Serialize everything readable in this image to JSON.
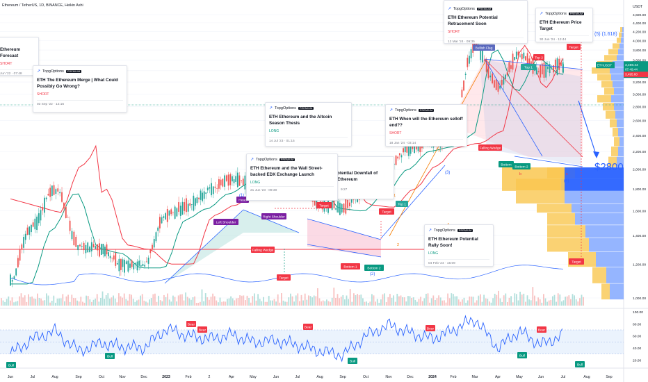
{
  "header": {
    "symbol_title": "Ethereum / TetherUS, 1D, BINANCE, Heikin Ashi"
  },
  "price_axis": {
    "currency": "USDT",
    "ticks": [
      "4,600.00",
      "4,400.00",
      "4,200.00",
      "4,000.00",
      "3,800.00",
      "3,600.00",
      "3,400.00",
      "3,200.00",
      "3,000.00",
      "2,800.00",
      "2,600.00",
      "2,400.00",
      "2,200.00",
      "2,000.00",
      "1,800.00",
      "1,600.00",
      "1,400.00",
      "1,200.00",
      "1,000.00"
    ],
    "last_label": {
      "symbol": "ETHUSDT",
      "price": "3,498.44",
      "countdown": "07:49:44",
      "secondary": "3,495.60"
    },
    "target_label": "$2800"
  },
  "rsi_axis": {
    "ticks": [
      "100.00",
      "80.00",
      "60.00",
      "40.00",
      "20.00"
    ]
  },
  "time_axis": {
    "labels": [
      "Jun",
      "Jul",
      "Aug",
      "Sep",
      "Oct",
      "Nov",
      "Dec",
      "2023",
      "Feb",
      "2",
      "Apr",
      "May",
      "Jun",
      "Jul",
      "Aug",
      "Sep",
      "Oct",
      "Nov",
      "Dec",
      "2024",
      "Feb",
      "Mar",
      "Apr",
      "May",
      "Jun",
      "Jul",
      "Aug",
      "Sep"
    ]
  },
  "annotations": {
    "wave": [
      "(1)",
      "(2)",
      "(3)",
      "(4)",
      "(5) (1.618)",
      "1",
      "2",
      "3",
      "4",
      "b",
      "c"
    ],
    "patterns": [
      "Head",
      "Left Shoulder",
      "Right Shoulder",
      "Falling Wedge",
      "Target",
      "Target",
      "Bottom 1",
      "Bottom 2",
      "Target",
      "Bullish Flag",
      "Top 1",
      "Top 2",
      "Target",
      "Falling Wedge",
      "Bottom",
      "Bottom 2",
      "Target"
    ],
    "rsi_marks": [
      "Bear",
      "Bear",
      "Bear",
      "Bear",
      "Bear",
      "Bull",
      "Bull",
      "Bull",
      "Bull",
      "Bull"
    ]
  },
  "ideas": [
    {
      "brand": "TopgOptions",
      "badge": "PREMIUM",
      "title": "Ethereum Forecast",
      "signal": "SHORT",
      "date": "Jun '22 · 07:48"
    },
    {
      "brand": "TopgOptions",
      "badge": "PREMIUM",
      "title": "ETH The Ethereum Merge | What Could Possibly Go Wrong?",
      "signal": "SHORT",
      "date": "03 Sep '22 · 12:16"
    },
    {
      "brand": "TopgOptions",
      "badge": "PREMIUM",
      "title": "ETH Ethereum and the Altcoin Season Thesis",
      "signal": "LONG",
      "date": "14 Jul '23 · 01:15"
    },
    {
      "brand": "TopgOptions",
      "badge": "PREMIUM",
      "title": "ETH Ethereum and the Wall Street-backed EDX Exchange Launch",
      "signal": "LONG",
      "date": "21 Jun '23 · 09:30"
    },
    {
      "brand": "TopgOptions",
      "badge": "PREMIUM",
      "title": "otential Downfall of Ethereum",
      "signal": "",
      "date": "9:27"
    },
    {
      "brand": "TopgOptions",
      "badge": "PREMIUM",
      "title": "ETH When will the Ethereum selloff end??",
      "signal": "SHORT",
      "date": "18 Jan '24 · 03:14"
    },
    {
      "brand": "TopgOptions",
      "badge": "PREMIUM",
      "title": "ETH Ethereum Potential Retracement Soon",
      "signal": "SHORT",
      "date": "12 Mar '24 · 09:35"
    },
    {
      "brand": "TopgOptions",
      "badge": "PREMIUM",
      "title": "ETH Ethereum Price Target",
      "signal": "",
      "date": "30 Jun '24 · 13:44"
    },
    {
      "brand": "TopgOptions",
      "badge": "PREMIUM",
      "title": "ETH Ethereum Potential Rally Soon!",
      "signal": "LONG",
      "date": "04 Feb '24 · 15:09"
    }
  ],
  "colors": {
    "up": "#26a69a",
    "down": "#ef5350",
    "ema_red": "#f23645",
    "ema_green": "#089981",
    "blue_line": "#2962ff",
    "rsi_band": "#dbe9fb",
    "vp_orange": "#f9c750",
    "vp_blue": "#2962ff"
  },
  "chart_data": {
    "type": "candlestick",
    "title": "Ethereum / TetherUS, 1D, BINANCE, Heikin Ashi",
    "y_scale": "log",
    "ylim": [
      950,
      4800
    ],
    "x": [
      "2022-06",
      "2022-07",
      "2022-08",
      "2022-09",
      "2022-10",
      "2022-11",
      "2022-12",
      "2023-01",
      "2023-02",
      "2023-03",
      "2023-04",
      "2023-05",
      "2023-06",
      "2023-07",
      "2023-08",
      "2023-09",
      "2023-10",
      "2023-11",
      "2023-12",
      "2024-01",
      "2024-02",
      "2024-03",
      "2024-04",
      "2024-05",
      "2024-06",
      "2024-07"
    ],
    "series": [
      {
        "name": "ETHUSDT",
        "values": [
          1100,
          1480,
          1800,
          1330,
          1300,
          1200,
          1200,
          1560,
          1650,
          1790,
          1900,
          1850,
          1880,
          1900,
          1650,
          1630,
          1800,
          2040,
          2250,
          2300,
          2450,
          3900,
          3100,
          3700,
          3400,
          3498
        ]
      }
    ],
    "last_price": 3498.44,
    "projection": [
      3498,
      2800
    ],
    "rsi": {
      "ylim": [
        10,
        100
      ],
      "values": [
        30,
        55,
        68,
        35,
        48,
        42,
        40,
        72,
        60,
        55,
        62,
        50,
        52,
        45,
        35,
        28,
        60,
        78,
        65,
        55,
        70,
        88,
        40,
        68,
        45,
        62
      ]
    }
  }
}
